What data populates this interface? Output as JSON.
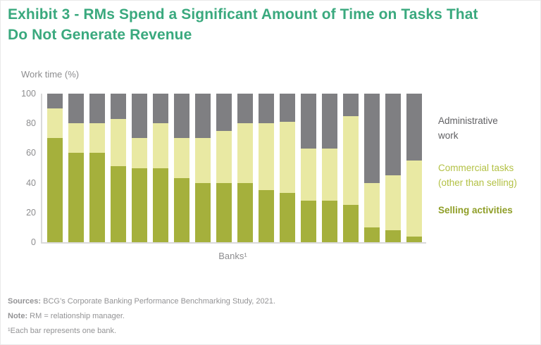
{
  "title": "Exhibit 3 - RMs Spend a Significant Amount of Time on Tasks That Do Not Generate Revenue",
  "axis": {
    "y_title": "Work time (%)",
    "x_label": "Banks¹"
  },
  "chart_data": {
    "type": "bar",
    "stacked": true,
    "title": "",
    "ylabel": "Work time (%)",
    "xlabel": "Banks¹",
    "ylim": [
      0,
      100
    ],
    "yticks": [
      100,
      80,
      60,
      40,
      20,
      0
    ],
    "grid": false,
    "legend_position": "right",
    "bar_count": 18,
    "series": [
      {
        "name": "Selling activities",
        "color": "#a5b03c",
        "values": [
          70,
          60,
          60,
          51,
          50,
          50,
          43,
          40,
          40,
          40,
          35,
          33,
          28,
          28,
          25,
          10,
          8,
          4
        ]
      },
      {
        "name": "Commercial tasks (other than selling)",
        "color": "#e9e9a3",
        "values": [
          20,
          20,
          20,
          32,
          20,
          30,
          27,
          30,
          35,
          40,
          45,
          48,
          35,
          35,
          60,
          30,
          37,
          51
        ]
      },
      {
        "name": "Administrative work",
        "color": "#7f7f82",
        "values": [
          10,
          20,
          20,
          17,
          30,
          20,
          30,
          30,
          25,
          20,
          20,
          19,
          37,
          37,
          15,
          60,
          55,
          45
        ]
      }
    ]
  },
  "legend": {
    "admin": {
      "label": "Administrative work",
      "color": "#616164"
    },
    "commercial": {
      "label": "Commercial tasks (other than selling)",
      "color": "#b3c145"
    },
    "selling": {
      "label": "Selling activities",
      "color": "#8f9e27"
    }
  },
  "footer": {
    "sources_label": "Sources:",
    "sources_text": " BCG’s Corporate Banking Performance Benchmarking Study, 2021.",
    "note_label": "Note:",
    "note_text": " RM = relationship manager.",
    "footnote": "¹Each bar represents one bank."
  },
  "colors": {
    "title": "#3aa97e",
    "axis_line": "#d9d9d9",
    "axis_text": "#8d8d8f",
    "footer_text": "#939395"
  }
}
